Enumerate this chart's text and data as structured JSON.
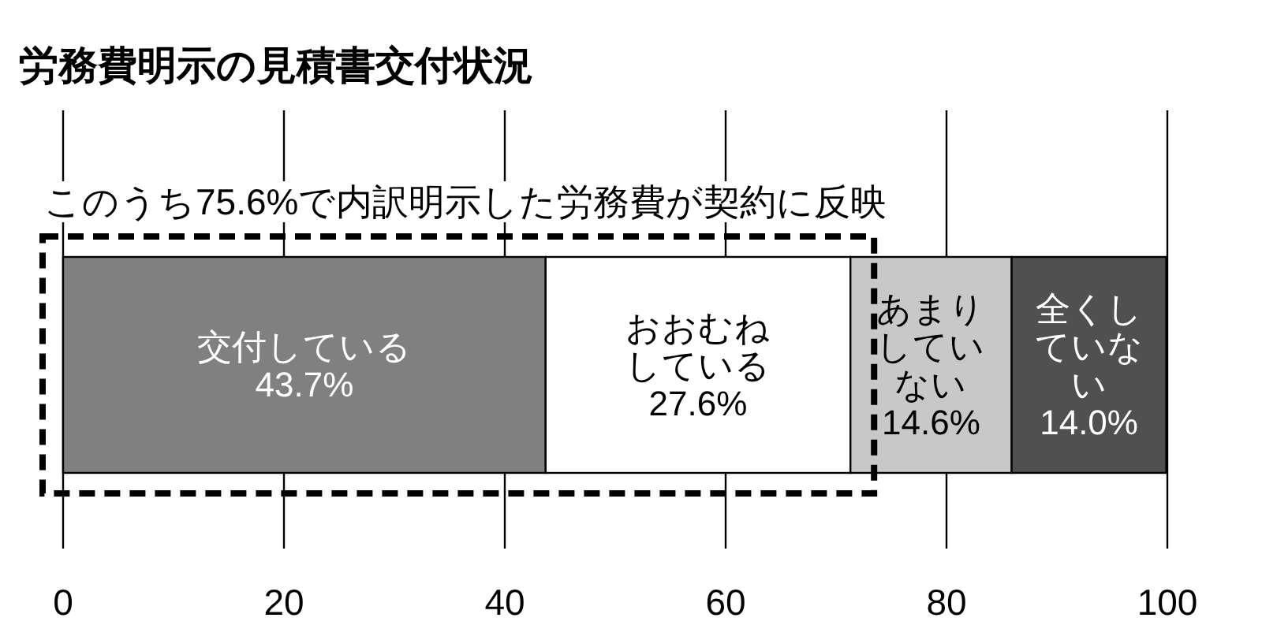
{
  "chart_data": {
    "type": "bar",
    "orientation": "horizontal",
    "stacked": true,
    "title": "労務費明示の見積書交付状況",
    "annotations": [
      "このうち75.6%で内訳明示した労務費が契約に反映"
    ],
    "categories": [
      null
    ],
    "series": [
      {
        "name": "交付している",
        "color": "#808080",
        "values": [
          43.7
        ],
        "value_labels": [
          "43.7%"
        ]
      },
      {
        "name": "おおむねしている",
        "color": "#ffffff",
        "values": [
          27.6
        ],
        "value_labels": [
          "27.6%"
        ]
      },
      {
        "name": "あまりしていない",
        "color": "#c8c8c8",
        "values": [
          14.6
        ],
        "value_labels": [
          "14.6%"
        ]
      },
      {
        "name": "全くしていない",
        "color": "#505050",
        "values": [
          14.0
        ],
        "value_labels": [
          "14.0%"
        ]
      }
    ],
    "xlim": [
      0,
      100
    ],
    "xticks": [
      0,
      20,
      40,
      60,
      80,
      100
    ],
    "grid": "x"
  }
}
